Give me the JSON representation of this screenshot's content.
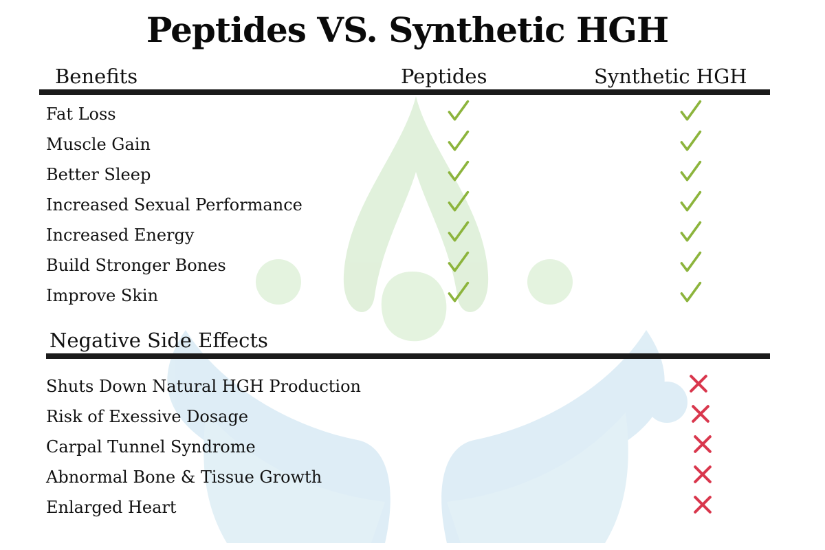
{
  "title": "Peptides VS. Synthetic HGH",
  "columns": {
    "benefits": "Benefits",
    "peptides": "Peptides",
    "synthetic": "Synthetic HGH"
  },
  "benefits": [
    {
      "label": "Fat Loss",
      "peptides": "check",
      "synthetic": "check"
    },
    {
      "label": "Muscle Gain",
      "peptides": "check",
      "synthetic": "check"
    },
    {
      "label": "Better Sleep",
      "peptides": "check",
      "synthetic": "check"
    },
    {
      "label": "Increased Sexual Performance",
      "peptides": "check",
      "synthetic": "check"
    },
    {
      "label": "Increased Energy",
      "peptides": "check",
      "synthetic": "check"
    },
    {
      "label": "Build Stronger Bones",
      "peptides": "check",
      "synthetic": "check"
    },
    {
      "label": "Improve Skin",
      "peptides": "check",
      "synthetic": "check"
    }
  ],
  "side_effects_heading": "Negative Side Effects",
  "side_effects": [
    {
      "label": "Shuts Down Natural HGH Production",
      "synthetic": "cross"
    },
    {
      "label": "Risk of Exessive Dosage",
      "synthetic": "cross"
    },
    {
      "label": "Carpal Tunnel Syndrome",
      "synthetic": "cross"
    },
    {
      "label": "Abnormal Bone & Tissue Growth",
      "synthetic": "cross"
    },
    {
      "label": "Enlarged Heart",
      "synthetic": "cross"
    }
  ],
  "colors": {
    "check": "#8cb43c",
    "cross": "#d9374d",
    "rule": "#1b1b1b",
    "watermark_green": "#d7ecd0",
    "watermark_blue": "#d4e8f3"
  },
  "icons": {
    "check": "check-icon",
    "cross": "cross-icon",
    "watermark": "lotus-logo"
  }
}
